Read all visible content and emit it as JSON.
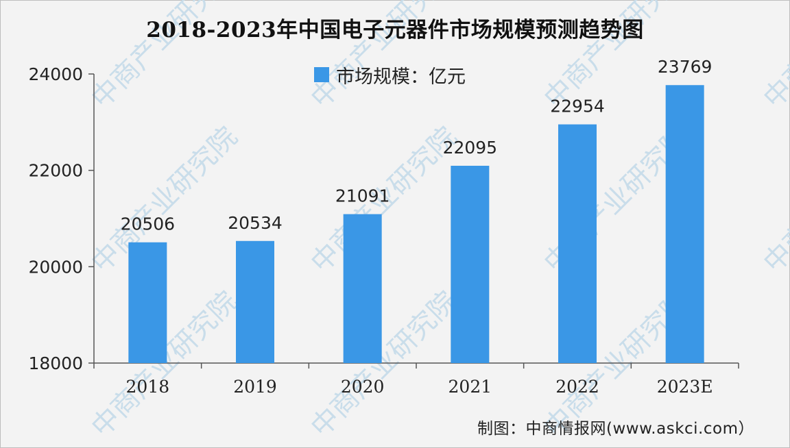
{
  "title": "2018-2023年中国电子元器件市场规模预测趋势图",
  "legend": {
    "label": "市场规模：亿元"
  },
  "source": "制图：中商情报网(www.askci.com）",
  "watermark": "中商产业研究院",
  "colors": {
    "bar": "#3a97e6",
    "axis": "#555555",
    "background": "#f3f3f3"
  },
  "chart_data": {
    "type": "bar",
    "title": "2018-2023年中国电子元器件市场规模预测趋势图",
    "categories": [
      "2018",
      "2019",
      "2020",
      "2021",
      "2022",
      "2023E"
    ],
    "series": [
      {
        "name": "市场规模：亿元",
        "values": [
          20506,
          20534,
          21091,
          22095,
          22954,
          23769
        ]
      }
    ],
    "data_labels": [
      "20506",
      "20534",
      "21091",
      "22095",
      "22954",
      "23769"
    ],
    "y_ticks": [
      18000,
      20000,
      22000,
      24000
    ],
    "ylim": [
      18000,
      24000
    ],
    "grid": false,
    "legend_position": "top-center"
  }
}
